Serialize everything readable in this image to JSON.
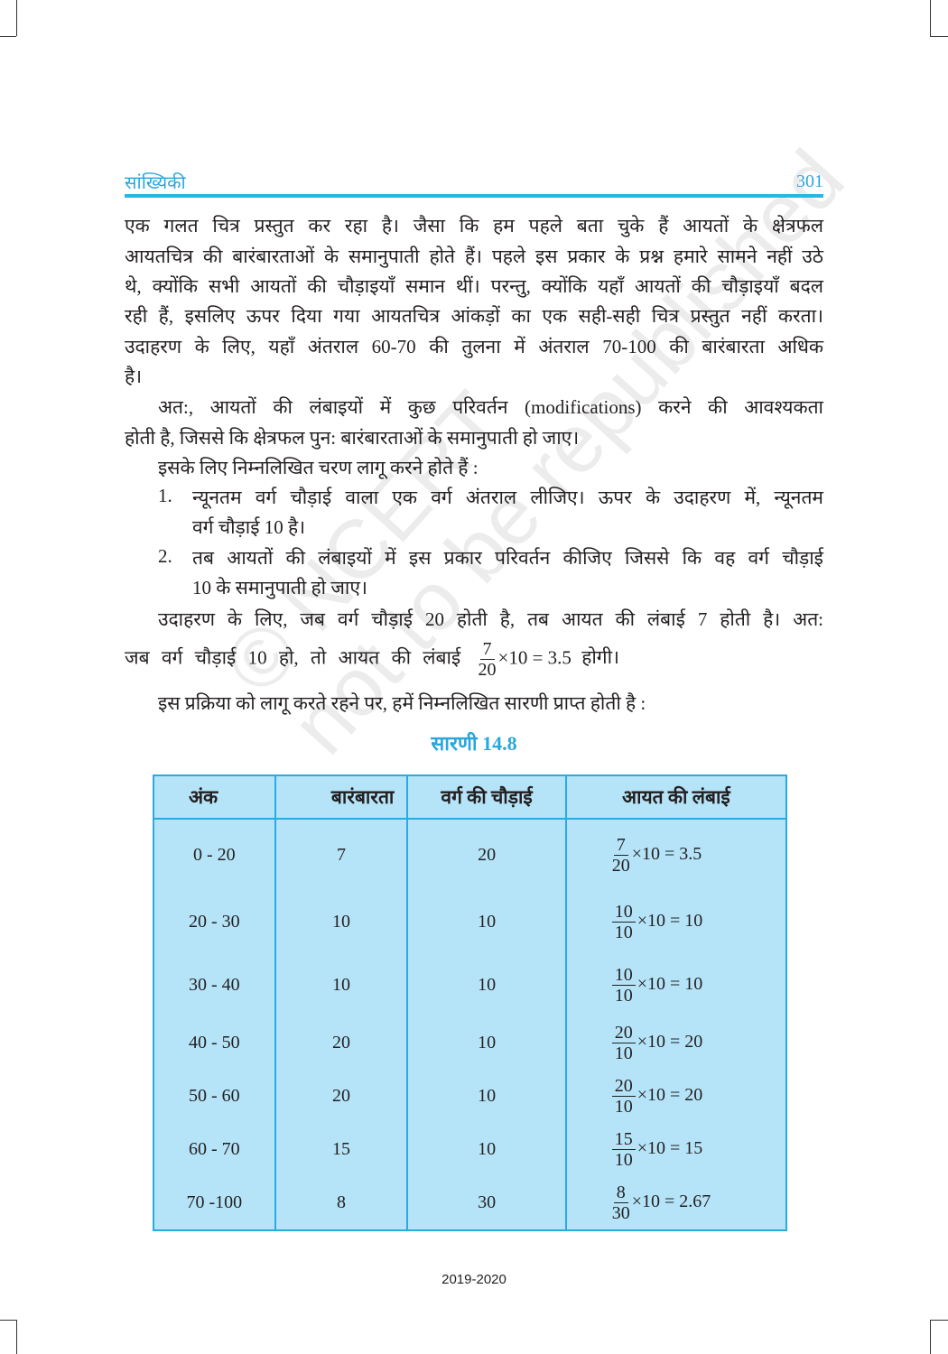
{
  "header": {
    "title": "सांख्यिकी",
    "page_number": "301"
  },
  "lines": [
    "एक गलत चित्र प्रस्तुत कर रहा है। जैसा कि हम पहले बता चुके हैं आयतों के क्षेत्रफल",
    "आयतचित्र की बारंबारताओं के समानुपाती होते हैं। पहले इस प्रकार के प्रश्न हमारे सामने नहीं उठे",
    "थे, क्योंकि सभी आयतों की चौड़ाइयाँ समान थीं। परन्तु, क्योंकि यहाँ आयतों की चौड़ाइयाँ बदल",
    "रही हैं, इसलिए ऊपर दिया गया आयतचित्र आंकड़ों का एक सही-सही चित्र प्रस्तुत नहीं करता।",
    "उदाहरण के लिए, यहाँ अंतराल 60-70 की तुलना में अंतराल 70-100 की बारंबारता अधिक",
    "है।",
    "अत:, आयतों की लंबाइयों में कुछ परिवर्तन (modifications) करने की आवश्यकता",
    "होती है, जिससे कि क्षेत्रफल पुन: बारंबारताओं के समानुपाती हो जाए।",
    "इसके लिए निम्नलिखित चरण लागू करने होते हैं :",
    "न्यूनतम वर्ग चौड़ाई वाला एक वर्ग अंतराल लीजिए। ऊपर के उदाहरण में, न्यूनतम",
    "वर्ग चौड़ाई 10 है।",
    "तब आयतों की लंबाइयों में इस प्रकार परिवर्तन कीजिए जिससे कि वह वर्ग चौड़ाई",
    "10 के समानुपाती हो जाए।",
    "उदाहरण के लिए, जब वर्ग चौड़ाई 20 होती है, तब आयत की लंबाई 7 होती है। अत:",
    "इस प्रक्रिया को लागू करते रहने पर, हमें निम्नलिखित सारणी प्राप्त होती है :"
  ],
  "list_numbers": [
    "1.",
    "2."
  ],
  "formula_line": {
    "prefix": "जब वर्ग चौड़ाई 10 हो, तो आयत की लंबाई",
    "numerator": "7",
    "denominator": "20",
    "rest": "×10 = 3.5",
    "suffix": "होगी।"
  },
  "table": {
    "title": "सारणी 14.8",
    "headers": [
      "अंक",
      "बारंबारता",
      "वर्ग की चौड़ाई",
      "आयत की लंबाई"
    ],
    "rows": [
      {
        "interval": "0 - 20",
        "frequency": "7",
        "width": "20",
        "num": "7",
        "den": "20",
        "mult": "×10",
        "result": "= 3.5"
      },
      {
        "interval": "20 - 30",
        "frequency": "10",
        "width": "10",
        "num": "10",
        "den": "10",
        "mult": "×10",
        "result": "= 10"
      },
      {
        "interval": "30 - 40",
        "frequency": "10",
        "width": "10",
        "num": "10",
        "den": "10",
        "mult": "×10",
        "result": "= 10"
      },
      {
        "interval": "40 - 50",
        "frequency": "20",
        "width": "10",
        "num": "20",
        "den": "10",
        "mult": "×10",
        "result": "= 20"
      },
      {
        "interval": "50 - 60",
        "frequency": "20",
        "width": "10",
        "num": "20",
        "den": "10",
        "mult": "×10",
        "result": "= 20"
      },
      {
        "interval": "60 - 70",
        "frequency": "15",
        "width": "10",
        "num": "15",
        "den": "10",
        "mult": "×10",
        "result": "= 15"
      },
      {
        "interval": "70 -100",
        "frequency": "8",
        "width": "30",
        "num": "8",
        "den": "30",
        "mult": "×10",
        "result": "= 2.67"
      }
    ]
  },
  "watermark": {
    "line1": "© NCERT",
    "line2": "not to be republished"
  },
  "footer": "2019-2020",
  "colors": {
    "accent": "#29a6de",
    "table_fill": "#b5e4f8",
    "table_border": "#29abe2"
  }
}
